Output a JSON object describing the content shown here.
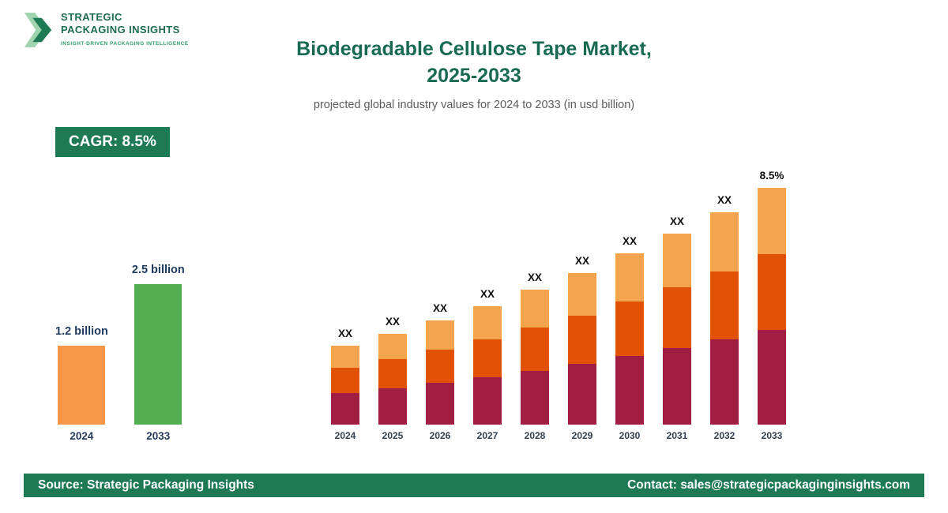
{
  "logo": {
    "line1": "STRATEGIC",
    "line2": "PACKAGING INSIGHTS",
    "tagline": "INSIGHT-DRIVEN PACKAGING INTELLIGENCE"
  },
  "header": {
    "title_line1": "Biodegradable Cellulose Tape Market,",
    "title_line2": "2025-2033",
    "subtitle": "projected global industry values for 2024 to 2033 (in usd billion)"
  },
  "badge": {
    "cagr_label": "CAGR: 8.5%"
  },
  "footer": {
    "source": "Source: Strategic Packaging Insights",
    "contact": "Contact: sales@strategicpackaginginsights.com"
  },
  "colors": {
    "brand_green": "#1e7a55",
    "title_green": "#186a53",
    "navy_label": "#1f3a5f"
  },
  "chart_data": [
    {
      "id": "market-size-comparison",
      "type": "bar",
      "categories": [
        "2024",
        "2033"
      ],
      "values": [
        1.2,
        2.5
      ],
      "value_labels": [
        "1.2 billion",
        "2.5 billion"
      ],
      "bar_colors": [
        "#f79646",
        "#53ae4f"
      ],
      "unit": "usd billion",
      "legend_position": "none",
      "grid": false
    },
    {
      "id": "projected-values-by-year",
      "type": "bar",
      "subtype": "stacked",
      "categories": [
        "2024",
        "2025",
        "2026",
        "2027",
        "2028",
        "2029",
        "2030",
        "2031",
        "2032",
        "2033"
      ],
      "values": [
        1.2,
        1.3,
        1.41,
        1.53,
        1.66,
        1.8,
        1.96,
        2.12,
        2.3,
        2.5
      ],
      "bar_top_labels": [
        "XX",
        "XX",
        "XX",
        "XX",
        "XX",
        "XX",
        "XX",
        "XX",
        "XX",
        "8.5%"
      ],
      "segment_fractions_bottom_to_top": [
        0.4,
        0.32,
        0.28
      ],
      "segment_colors_bottom_to_top": [
        "#a11d42",
        "#e25206",
        "#f5a44e"
      ],
      "cagr": "8.5%",
      "unit": "usd billion",
      "legend_position": "none",
      "grid": false
    }
  ]
}
